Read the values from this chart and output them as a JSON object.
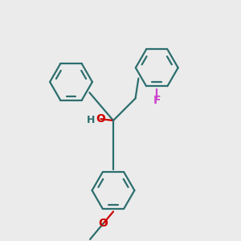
{
  "bg_color": "#ebebeb",
  "bond_color": "#2d6e6e",
  "o_color": "#cc0000",
  "f_color": "#cc44cc",
  "lw": 1.6,
  "figsize": [
    3.0,
    3.0
  ],
  "dpi": 100,
  "xlim": [
    0,
    10
  ],
  "ylim": [
    0,
    10
  ],
  "central_x": 4.7,
  "central_y": 5.0
}
